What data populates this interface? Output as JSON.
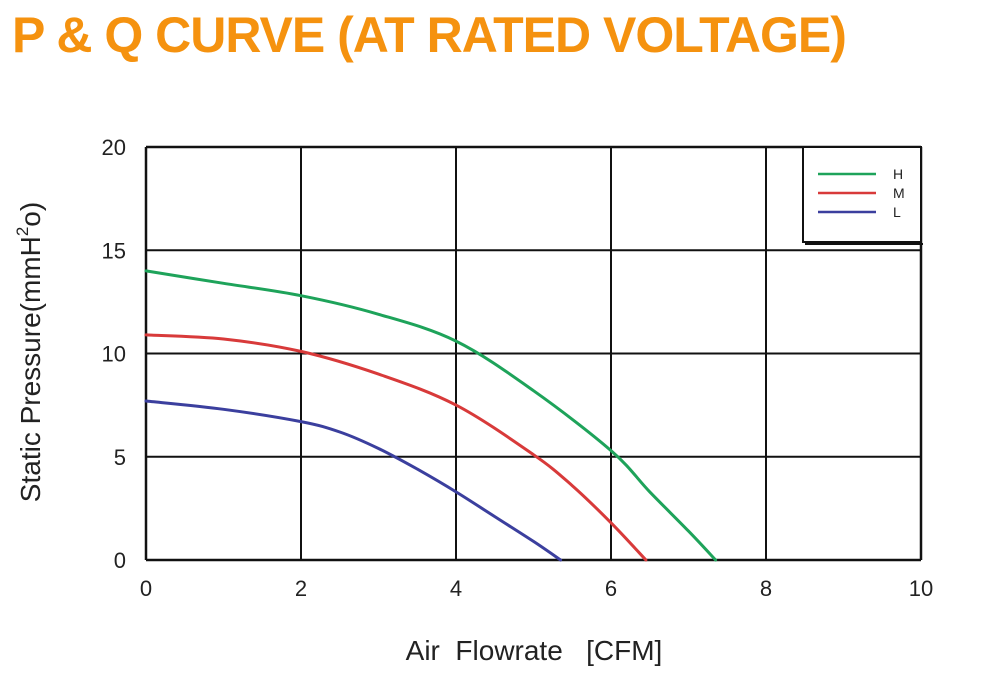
{
  "page": {
    "title": "P & Q CURVE (AT RATED VOLTAGE)"
  },
  "colors": {
    "title": "#f5920f",
    "grid": "#111111",
    "H": "#1ea35a",
    "M": "#d83a3a",
    "L": "#3b3f9e"
  },
  "chart_data": {
    "type": "line",
    "title": "",
    "xlabel": "Air  Flowrate   [CFM]",
    "ylabel_main": "Static Pressure(mmH",
    "ylabel_sup": "2",
    "ylabel_tail": "o)",
    "xlim": [
      0,
      10
    ],
    "ylim": [
      0,
      20
    ],
    "xticks": [
      "0",
      "2",
      "4",
      "6",
      "8",
      "10"
    ],
    "yticks": [
      "0",
      "5",
      "10",
      "15",
      "20"
    ],
    "grid": true,
    "legend_position": "top-right",
    "series": [
      {
        "name": "H",
        "color": "#1ea35a",
        "points": [
          [
            0,
            14
          ],
          [
            1,
            13.4
          ],
          [
            2,
            12.8
          ],
          [
            3,
            11.9
          ],
          [
            4,
            10.6
          ],
          [
            5,
            8.2
          ],
          [
            6,
            5.3
          ],
          [
            6.5,
            3.3
          ],
          [
            7,
            1.4
          ],
          [
            7.35,
            0
          ]
        ]
      },
      {
        "name": "M",
        "color": "#d83a3a",
        "points": [
          [
            0,
            10.9
          ],
          [
            1,
            10.7
          ],
          [
            2,
            10.1
          ],
          [
            3,
            9.0
          ],
          [
            4,
            7.5
          ],
          [
            5,
            5.1
          ],
          [
            5.5,
            3.6
          ],
          [
            6,
            1.8
          ],
          [
            6.45,
            0
          ]
        ]
      },
      {
        "name": "L",
        "color": "#3b3f9e",
        "points": [
          [
            0,
            7.7
          ],
          [
            1,
            7.3
          ],
          [
            2,
            6.7
          ],
          [
            2.5,
            6.2
          ],
          [
            3,
            5.4
          ],
          [
            3.5,
            4.4
          ],
          [
            4,
            3.3
          ],
          [
            4.5,
            2.1
          ],
          [
            5,
            0.9
          ],
          [
            5.35,
            0
          ]
        ]
      }
    ]
  }
}
